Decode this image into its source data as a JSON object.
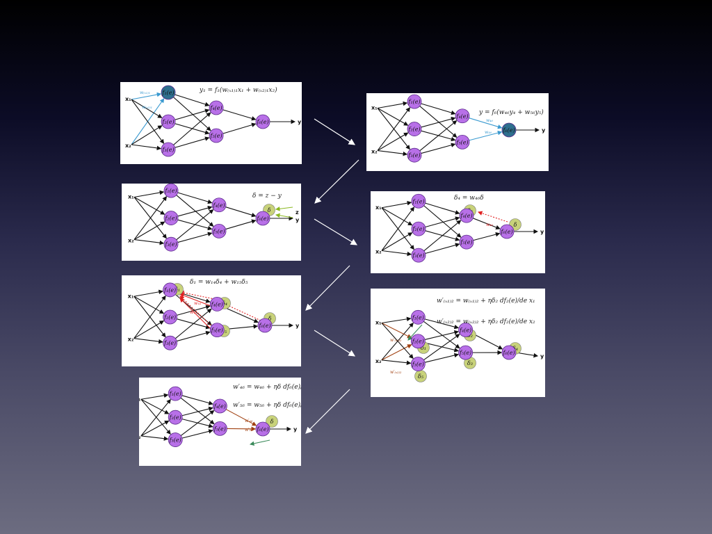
{
  "diagram": {
    "panels": [
      {
        "id": "p1",
        "equation": "y₁ = f₁(w₍ₓ₁₎₁x₁ + w₍ₓ₂₎₁x₂)",
        "inputs": [
          "x₁",
          "x₂"
        ],
        "output": "y",
        "node_labels": [
          "f₁(e)",
          "f₂(e)",
          "f₃(e)",
          "f₄(e)",
          "f₅(e)",
          "f₆(e)"
        ],
        "weight_labels": [
          "w₍ₓ₁₎₁",
          "w₍ₓ₂₎₁"
        ],
        "highlight_color": "#3a9ad0"
      },
      {
        "id": "p2",
        "equation": "y = f₆(w₄₆y₄ + w₅₆y₅)",
        "inputs": [
          "x₁",
          "x₂"
        ],
        "output": "y",
        "node_labels": [
          "f₁(e)",
          "f₂(e)",
          "f₃(e)",
          "f₄(e)",
          "f₅(e)",
          "f₆(e)"
        ],
        "weight_labels": [
          "w₄₆",
          "w₅₆"
        ],
        "highlight_color": "#3a9ad0"
      },
      {
        "id": "p3",
        "equation": "δ = z − y",
        "inputs": [
          "x₁",
          "x₂"
        ],
        "outputs": [
          "z",
          "y"
        ],
        "node_labels": [
          "f₁(e)",
          "f₂(e)",
          "f₃(e)",
          "f₄(e)",
          "f₅(e)",
          "f₆(e)"
        ],
        "delta_labels": [
          "δ"
        ],
        "highlight_color": "#8ab820"
      },
      {
        "id": "p4",
        "equation": "δ₄ = w₄₆δ",
        "inputs": [
          "x₁",
          "x₂"
        ],
        "output": "y",
        "node_labels": [
          "f₁(e)",
          "f₂(e)",
          "f₃(e)",
          "f₄(e)",
          "f₅(e)",
          "f₆(e)"
        ],
        "delta_labels": [
          "δ₄",
          "δ"
        ],
        "weight_labels": [
          "w₄₆"
        ],
        "highlight_color": "#e02020"
      },
      {
        "id": "p5",
        "equation": "δ₁ = w₁₄δ₄ + w₁₅δ₅",
        "inputs": [
          "x₁",
          "x₂"
        ],
        "output": "y",
        "node_labels": [
          "f₁(e)",
          "f₂(e)",
          "f₃(e)",
          "f₄(e)",
          "f₅(e)",
          "f₆(e)"
        ],
        "delta_labels": [
          "δ₁",
          "δ₄",
          "δ₅",
          "δ"
        ],
        "weight_labels": [
          "w₁₄",
          "w₁₅"
        ],
        "highlight_color": "#e02020"
      },
      {
        "id": "p6",
        "equations": [
          "w′₍ₓ₁₎₂ = w₍ₓ₁₎₂ + ηδ₂ df₂(e)/de x₁",
          "w′₍ₓ₂₎₂ = w₍ₓ₂₎₂ + ηδ₂ df₂(e)/de x₂"
        ],
        "inputs": [
          "x₁",
          "x₂"
        ],
        "output": "y",
        "node_labels": [
          "f₁(e)",
          "f₂(e)",
          "f₃(e)",
          "f₄(e)",
          "f₅(e)",
          "f₆(e)"
        ],
        "delta_labels": [
          "δ₁",
          "δ₂",
          "δ₃",
          "δ₄",
          "δ₅",
          "δ"
        ],
        "weight_labels": [
          "w′₍ₓ₁₎₂",
          "w′₍ₓ₂₎₂"
        ],
        "highlight_color": "#a04010"
      },
      {
        "id": "p7",
        "equations": [
          "w′₄₆ = w₄₆ + ηδ df₆(e)/de y₄",
          "w′₅₆ = w₅₆ + ηδ df₆(e)/de y₅"
        ],
        "inputs": [
          "x₁",
          "x₂"
        ],
        "output": "y",
        "node_labels": [
          "f₁(e)",
          "f₂(e)",
          "f₃(e)",
          "f₄(e)",
          "f₅(e)",
          "f₆(e)"
        ],
        "delta_labels": [
          "δ"
        ],
        "weight_labels": [
          "w′₄₆",
          "w′₅₆"
        ],
        "highlight_color": "#a04010"
      }
    ]
  },
  "colors": {
    "node_fill": "#b870e8",
    "node_stroke": "#5a2a8a",
    "delta_fill": "#c8d27a",
    "output_node": "#2e6f8e",
    "arrow": "#ffffff"
  }
}
